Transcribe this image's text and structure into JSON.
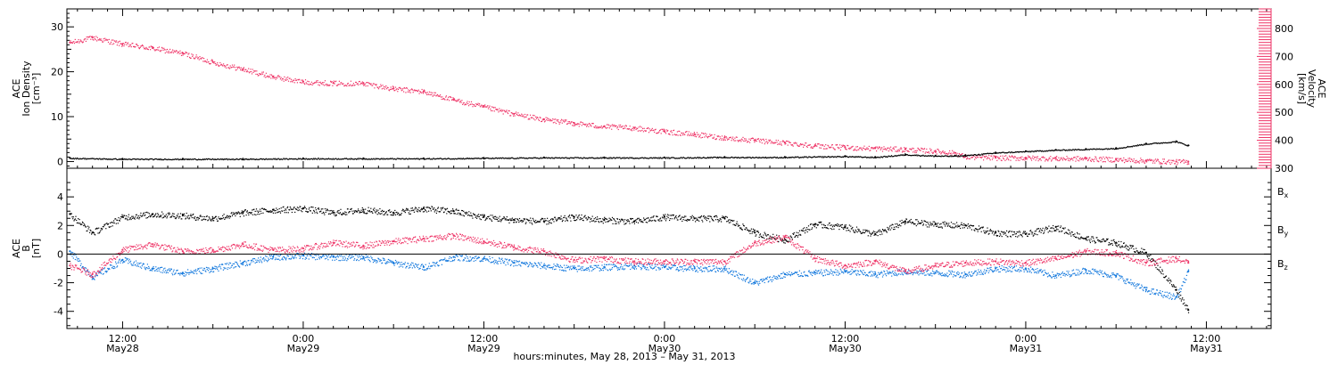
{
  "colors": {
    "black": "#000000",
    "pink": "#ee3366",
    "blue": "#1177dd"
  },
  "xlabel": "hours:minutes, May 28, 2013 – May 31, 2013",
  "x_ticks": [
    {
      "time": "12:00",
      "date": "May28",
      "hour": 12
    },
    {
      "time": "0:00",
      "date": "May29",
      "hour": 24
    },
    {
      "time": "12:00",
      "date": "May29",
      "hour": 36
    },
    {
      "time": "0:00",
      "date": "May30",
      "hour": 48
    },
    {
      "time": "12:00",
      "date": "May30",
      "hour": 60
    },
    {
      "time": "0:00",
      "date": "May31",
      "hour": 72
    },
    {
      "time": "12:00",
      "date": "May31",
      "hour": 84
    }
  ],
  "chart_data": [
    {
      "type": "scatter",
      "panel": "plasma",
      "ylabel_lines": [
        "ACE",
        "Ion Density",
        "[cm⁻³]"
      ],
      "ylim": [
        -1.5,
        34
      ],
      "yticks": [
        "0",
        "10",
        "20",
        "30"
      ],
      "y2label_lines": [
        "ACE",
        "Velocity",
        "[km/s]"
      ],
      "y2lim": [
        300,
        870
      ],
      "y2ticks": [
        "300",
        "400",
        "500",
        "600",
        "700",
        "800"
      ],
      "x_range_hours": [
        8.3,
        88.3
      ],
      "series": [
        {
          "axis": "left",
          "color": "#000000",
          "x": [
            8.5,
            12,
            16,
            20,
            24,
            28,
            32,
            36,
            40,
            44,
            48,
            52,
            56,
            60,
            62,
            64,
            66,
            67.3,
            68,
            70,
            72,
            74,
            76,
            78,
            80,
            82,
            82.8
          ],
          "y": [
            0.8,
            0.6,
            0.6,
            0.6,
            0.7,
            0.7,
            0.7,
            0.8,
            0.9,
            0.9,
            0.9,
            1.0,
            1.0,
            1.2,
            1.0,
            1.6,
            1.3,
            1.3,
            1.4,
            2.0,
            2.3,
            2.6,
            2.8,
            3.0,
            4.0,
            4.5,
            3.6
          ]
        },
        {
          "axis": "right",
          "color": "#ee3366",
          "x": [
            8.5,
            10,
            12,
            14,
            16,
            18,
            20,
            22,
            24,
            26,
            28,
            30,
            32,
            34,
            36,
            38,
            40,
            42,
            44,
            46,
            48,
            50,
            52,
            54,
            56,
            58,
            60,
            62,
            64,
            66,
            67.3,
            68,
            70,
            72,
            74,
            76,
            78,
            80,
            82,
            82.8
          ],
          "y": [
            750,
            768,
            745,
            730,
            712,
            680,
            655,
            628,
            610,
            605,
            605,
            585,
            575,
            545,
            520,
            495,
            475,
            462,
            450,
            445,
            432,
            422,
            410,
            400,
            392,
            382,
            375,
            372,
            368,
            362,
            355,
            342,
            338,
            338,
            336,
            335,
            332,
            328,
            324,
            324
          ]
        }
      ]
    },
    {
      "type": "scatter",
      "panel": "magnetic",
      "ylabel_lines": [
        "ACE",
        "B",
        "[nT]"
      ],
      "ylim": [
        -5.2,
        6
      ],
      "yticks": [
        "-4",
        "-2",
        "0",
        "2",
        "4"
      ],
      "legend": [
        {
          "label": "B",
          "sub": "x",
          "color": "#000000"
        },
        {
          "label": "B",
          "sub": "y",
          "color": "#1177dd"
        },
        {
          "label": "B",
          "sub": "z",
          "color": "#ee3366"
        }
      ],
      "x_range_hours": [
        8.3,
        88.3
      ],
      "series": [
        {
          "name": "Bx",
          "color": "#000000",
          "x": [
            8.5,
            10,
            12,
            14,
            16,
            18,
            20,
            22,
            24,
            26,
            28,
            30,
            32,
            34,
            36,
            38,
            40,
            42,
            44,
            46,
            48,
            50,
            52,
            54,
            56,
            58,
            60,
            62,
            64,
            66,
            68,
            70,
            72,
            74,
            76,
            78,
            80,
            82,
            82.8
          ],
          "y": [
            2.8,
            1.5,
            2.6,
            2.8,
            2.7,
            2.5,
            2.9,
            3.1,
            3.2,
            2.9,
            3.1,
            2.9,
            3.2,
            3.0,
            2.6,
            2.4,
            2.3,
            2.6,
            2.4,
            2.3,
            2.6,
            2.5,
            2.5,
            1.5,
            1.0,
            2.1,
            1.9,
            1.4,
            2.3,
            2.1,
            2.0,
            1.5,
            1.4,
            1.9,
            1.1,
            0.8,
            0.1,
            -2.5,
            -3.9
          ]
        },
        {
          "name": "By",
          "color": "#1177dd",
          "x": [
            8.5,
            10,
            12,
            14,
            16,
            18,
            20,
            22,
            24,
            26,
            28,
            30,
            32,
            34,
            36,
            38,
            40,
            42,
            44,
            46,
            48,
            50,
            52,
            54,
            56,
            58,
            60,
            62,
            64,
            66,
            68,
            70,
            72,
            74,
            76,
            78,
            80,
            82,
            82.8
          ],
          "y": [
            0.2,
            -1.6,
            -0.4,
            -1.0,
            -1.3,
            -1.0,
            -0.6,
            -0.2,
            -0.1,
            -0.2,
            -0.2,
            -0.6,
            -0.9,
            -0.2,
            -0.3,
            -0.6,
            -0.8,
            -1.0,
            -0.9,
            -0.8,
            -0.9,
            -1.0,
            -1.0,
            -2.0,
            -1.4,
            -1.3,
            -1.2,
            -1.4,
            -1.2,
            -1.3,
            -1.4,
            -1.0,
            -1.0,
            -1.5,
            -1.1,
            -1.5,
            -2.5,
            -3.0,
            -1.2
          ]
        },
        {
          "name": "Bz",
          "color": "#ee3366",
          "x": [
            8.5,
            10,
            12,
            14,
            16,
            18,
            20,
            22,
            24,
            26,
            28,
            30,
            32,
            34,
            36,
            38,
            40,
            42,
            44,
            46,
            48,
            50,
            52,
            54,
            56,
            58,
            60,
            62,
            64,
            66,
            68,
            70,
            72,
            74,
            76,
            78,
            80,
            82,
            82.8
          ],
          "y": [
            -0.8,
            -1.4,
            0.3,
            0.7,
            0.2,
            0.3,
            0.7,
            0.3,
            0.4,
            0.8,
            0.6,
            0.9,
            1.1,
            1.3,
            0.9,
            0.5,
            0.2,
            -0.4,
            -0.3,
            -0.5,
            -0.5,
            -0.5,
            -0.5,
            0.8,
            1.2,
            -0.3,
            -0.8,
            -0.5,
            -1.2,
            -0.8,
            -0.6,
            -0.5,
            -0.6,
            -0.3,
            0.2,
            0.1,
            -0.6,
            -0.3,
            -0.6
          ]
        }
      ]
    }
  ]
}
